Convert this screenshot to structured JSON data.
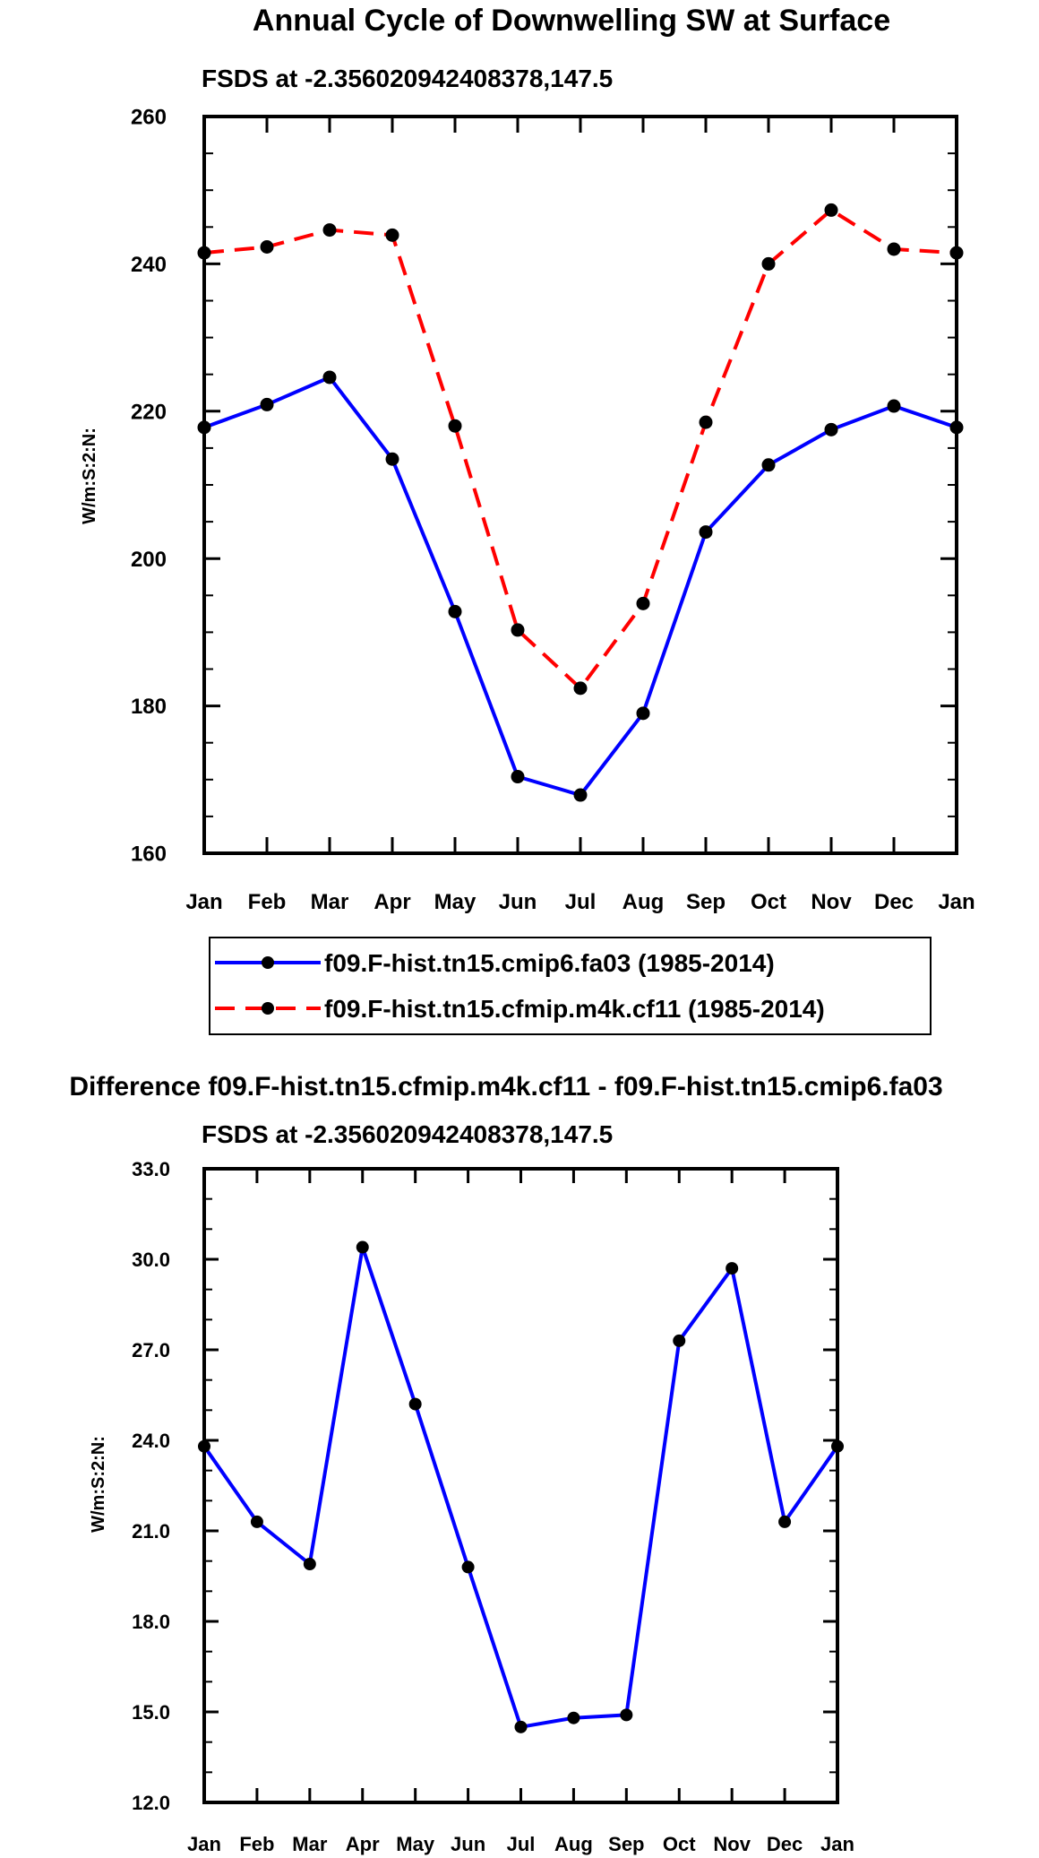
{
  "chart_data": [
    {
      "type": "line",
      "title": "Annual Cycle of Downwelling SW at Surface",
      "subtitle": "FSDS at -2.356020942408378,147.5",
      "xlabel": "",
      "ylabel": "W/m:S:2:N:",
      "categories": [
        "Jan",
        "Feb",
        "Mar",
        "Apr",
        "May",
        "Jun",
        "Jul",
        "Aug",
        "Sep",
        "Oct",
        "Nov",
        "Dec",
        "Jan"
      ],
      "ylim": [
        160,
        260
      ],
      "yticks": [
        "160",
        "180",
        "200",
        "220",
        "240",
        "260"
      ],
      "series": [
        {
          "name": "f09.F-hist.tn15.cmip6.fa03 (1985-2014)",
          "color": "#0000ff",
          "dash": "solid",
          "values": [
            217.8,
            220.9,
            224.6,
            213.5,
            192.8,
            170.4,
            167.9,
            179.0,
            203.6,
            212.7,
            217.5,
            220.7,
            217.8
          ]
        },
        {
          "name": "f09.F-hist.tn15.cfmip.m4k.cf11 (1985-2014)",
          "color": "#ff0000",
          "dash": "dashed",
          "values": [
            241.5,
            242.3,
            244.6,
            243.9,
            218.0,
            190.3,
            182.4,
            193.9,
            218.5,
            240.0,
            247.3,
            242.0,
            241.5
          ]
        }
      ],
      "legend": "bottom"
    },
    {
      "type": "line",
      "title": "Difference f09.F-hist.tn15.cfmip.m4k.cf11 - f09.F-hist.tn15.cmip6.fa03",
      "subtitle": "FSDS at -2.356020942408378,147.5",
      "xlabel": "",
      "ylabel": "W/m:S:2:N:",
      "categories": [
        "Jan",
        "Feb",
        "Mar",
        "Apr",
        "May",
        "Jun",
        "Jul",
        "Aug",
        "Sep",
        "Oct",
        "Nov",
        "Dec",
        "Jan"
      ],
      "ylim": [
        12,
        33
      ],
      "yticks": [
        "12.0",
        "15.0",
        "18.0",
        "21.0",
        "24.0",
        "27.0",
        "30.0",
        "33.0"
      ],
      "series": [
        {
          "name": "Difference",
          "color": "#0000ff",
          "dash": "solid",
          "values": [
            23.8,
            21.3,
            19.9,
            30.4,
            25.2,
            19.8,
            14.5,
            14.8,
            14.9,
            27.3,
            29.7,
            21.3,
            23.8
          ]
        }
      ]
    }
  ]
}
